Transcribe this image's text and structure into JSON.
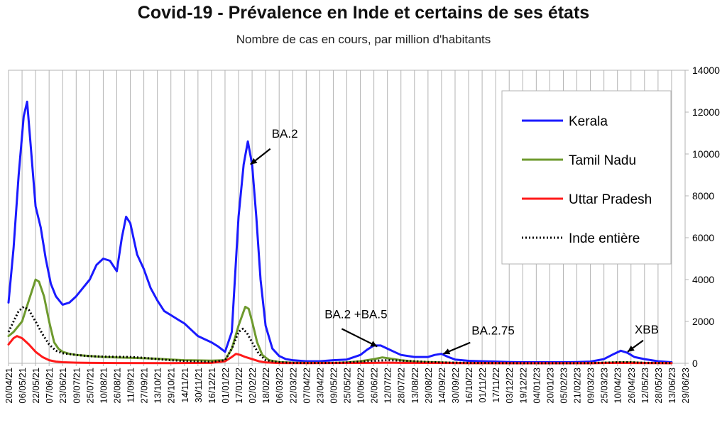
{
  "chart_data": {
    "type": "line",
    "title": "Covid-19 - Prévalence en Inde et certains de ses états",
    "subtitle": "Nombre de cas en cours, par million d'habitants",
    "xlabel": "",
    "ylabel": "",
    "ylim": [
      0,
      14000
    ],
    "yticks": [
      0,
      2000,
      4000,
      6000,
      8000,
      10000,
      12000,
      14000
    ],
    "y_axis_side": "right",
    "grid": "vertical",
    "legend_position": "top-right",
    "x_tick_labels": [
      "20/04/21",
      "06/05/21",
      "22/05/21",
      "07/06/21",
      "23/06/21",
      "09/07/21",
      "25/07/21",
      "10/08/21",
      "26/08/21",
      "11/09/21",
      "27/09/21",
      "13/10/21",
      "29/10/21",
      "14/11/21",
      "30/11/21",
      "16/12/21",
      "01/01/22",
      "17/01/22",
      "02/02/22",
      "18/02/22",
      "06/03/22",
      "22/03/22",
      "07/04/22",
      "23/04/22",
      "09/05/22",
      "25/05/22",
      "10/06/22",
      "26/06/22",
      "12/07/22",
      "28/07/22",
      "13/08/22",
      "29/08/22",
      "14/09/22",
      "30/09/22",
      "16/10/22",
      "01/11/22",
      "17/11/22",
      "03/12/22",
      "19/12/22",
      "04/01/23",
      "20/01/23",
      "05/02/23",
      "21/02/23",
      "09/03/23",
      "25/03/23",
      "10/04/23",
      "26/04/23",
      "12/05/23",
      "28/05/23",
      "13/06/23",
      "29/06/23"
    ],
    "series": [
      {
        "name": "Kerala",
        "color": "#1a1aff",
        "style": "solid",
        "points": [
          [
            "20/04/21",
            2900
          ],
          [
            "26/04/21",
            5500
          ],
          [
            "02/05/21",
            9000
          ],
          [
            "08/05/21",
            11800
          ],
          [
            "12/05/21",
            12500
          ],
          [
            "16/05/21",
            10500
          ],
          [
            "22/05/21",
            7500
          ],
          [
            "28/05/21",
            6500
          ],
          [
            "03/06/21",
            5000
          ],
          [
            "09/06/21",
            3800
          ],
          [
            "15/06/21",
            3200
          ],
          [
            "23/06/21",
            2800
          ],
          [
            "01/07/21",
            2900
          ],
          [
            "09/07/21",
            3200
          ],
          [
            "17/07/21",
            3600
          ],
          [
            "25/07/21",
            4000
          ],
          [
            "02/08/21",
            4700
          ],
          [
            "10/08/21",
            5000
          ],
          [
            "18/08/21",
            4900
          ],
          [
            "26/08/21",
            4400
          ],
          [
            "01/09/21",
            6000
          ],
          [
            "06/09/21",
            7000
          ],
          [
            "11/09/21",
            6700
          ],
          [
            "19/09/21",
            5200
          ],
          [
            "27/09/21",
            4500
          ],
          [
            "05/10/21",
            3600
          ],
          [
            "13/10/21",
            3000
          ],
          [
            "21/10/21",
            2500
          ],
          [
            "29/10/21",
            2300
          ],
          [
            "06/11/21",
            2100
          ],
          [
            "14/11/21",
            1900
          ],
          [
            "22/11/21",
            1600
          ],
          [
            "30/11/21",
            1300
          ],
          [
            "08/12/21",
            1150
          ],
          [
            "16/12/21",
            1000
          ],
          [
            "24/12/21",
            800
          ],
          [
            "01/01/22",
            550
          ],
          [
            "09/01/22",
            1500
          ],
          [
            "17/01/22",
            7000
          ],
          [
            "23/01/22",
            9500
          ],
          [
            "28/01/22",
            10600
          ],
          [
            "02/02/22",
            9500
          ],
          [
            "07/02/22",
            7000
          ],
          [
            "12/02/22",
            4000
          ],
          [
            "18/02/22",
            1800
          ],
          [
            "26/02/22",
            700
          ],
          [
            "06/03/22",
            350
          ],
          [
            "14/03/22",
            200
          ],
          [
            "22/03/22",
            150
          ],
          [
            "07/04/22",
            100
          ],
          [
            "23/04/22",
            100
          ],
          [
            "09/05/22",
            150
          ],
          [
            "25/05/22",
            180
          ],
          [
            "10/06/22",
            400
          ],
          [
            "18/06/22",
            650
          ],
          [
            "26/06/22",
            850
          ],
          [
            "04/07/22",
            850
          ],
          [
            "12/07/22",
            700
          ],
          [
            "20/07/22",
            550
          ],
          [
            "28/07/22",
            400
          ],
          [
            "13/08/22",
            300
          ],
          [
            "29/08/22",
            300
          ],
          [
            "06/09/22",
            400
          ],
          [
            "14/09/22",
            450
          ],
          [
            "22/09/22",
            300
          ],
          [
            "30/09/22",
            180
          ],
          [
            "16/10/22",
            120
          ],
          [
            "01/11/22",
            100
          ],
          [
            "17/11/22",
            80
          ],
          [
            "03/12/22",
            60
          ],
          [
            "19/12/22",
            50
          ],
          [
            "04/01/23",
            50
          ],
          [
            "20/01/23",
            50
          ],
          [
            "05/02/23",
            50
          ],
          [
            "21/02/23",
            60
          ],
          [
            "09/03/23",
            80
          ],
          [
            "25/03/23",
            200
          ],
          [
            "06/04/23",
            450
          ],
          [
            "14/04/23",
            600
          ],
          [
            "22/04/23",
            500
          ],
          [
            "30/04/23",
            300
          ],
          [
            "12/05/23",
            200
          ],
          [
            "28/05/23",
            100
          ],
          [
            "13/06/23",
            50
          ]
        ]
      },
      {
        "name": "Tamil Nadu",
        "color": "#6e9a2e",
        "style": "solid",
        "points": [
          [
            "20/04/21",
            1300
          ],
          [
            "26/04/21",
            1500
          ],
          [
            "06/05/21",
            2000
          ],
          [
            "14/05/21",
            3000
          ],
          [
            "22/05/21",
            4000
          ],
          [
            "26/05/21",
            3900
          ],
          [
            "01/06/21",
            3200
          ],
          [
            "07/06/21",
            2000
          ],
          [
            "13/06/21",
            1000
          ],
          [
            "18/06/21",
            700
          ],
          [
            "23/06/21",
            550
          ],
          [
            "01/07/21",
            450
          ],
          [
            "09/07/21",
            400
          ],
          [
            "25/07/21",
            350
          ],
          [
            "10/08/21",
            300
          ],
          [
            "26/08/21",
            280
          ],
          [
            "11/09/21",
            260
          ],
          [
            "27/09/21",
            240
          ],
          [
            "13/10/21",
            220
          ],
          [
            "29/10/21",
            180
          ],
          [
            "14/11/21",
            150
          ],
          [
            "30/11/21",
            140
          ],
          [
            "16/12/21",
            130
          ],
          [
            "01/01/22",
            150
          ],
          [
            "09/01/22",
            700
          ],
          [
            "17/01/22",
            1800
          ],
          [
            "25/01/22",
            2700
          ],
          [
            "29/01/22",
            2600
          ],
          [
            "02/02/22",
            2000
          ],
          [
            "08/02/22",
            1000
          ],
          [
            "14/02/22",
            400
          ],
          [
            "22/02/22",
            150
          ],
          [
            "06/03/22",
            60
          ],
          [
            "22/03/22",
            30
          ],
          [
            "07/04/22",
            20
          ],
          [
            "09/05/22",
            20
          ],
          [
            "25/05/22",
            40
          ],
          [
            "10/06/22",
            100
          ],
          [
            "26/06/22",
            200
          ],
          [
            "06/07/22",
            280
          ],
          [
            "20/07/22",
            200
          ],
          [
            "28/07/22",
            150
          ],
          [
            "13/08/22",
            80
          ],
          [
            "29/08/22",
            60
          ],
          [
            "14/09/22",
            40
          ],
          [
            "30/09/22",
            20
          ],
          [
            "16/10/22",
            10
          ],
          [
            "19/12/22",
            5
          ],
          [
            "04/01/23",
            5
          ],
          [
            "09/03/23",
            10
          ],
          [
            "10/04/23",
            40
          ],
          [
            "26/04/23",
            40
          ],
          [
            "12/05/23",
            20
          ],
          [
            "13/06/23",
            10
          ]
        ]
      },
      {
        "name": "Uttar Pradesh",
        "color": "#ff1a1a",
        "style": "solid",
        "points": [
          [
            "20/04/21",
            900
          ],
          [
            "26/04/21",
            1200
          ],
          [
            "30/04/21",
            1300
          ],
          [
            "06/05/21",
            1200
          ],
          [
            "14/05/21",
            900
          ],
          [
            "22/05/21",
            550
          ],
          [
            "30/05/21",
            300
          ],
          [
            "07/06/21",
            150
          ],
          [
            "15/06/21",
            80
          ],
          [
            "23/06/21",
            50
          ],
          [
            "09/07/21",
            30
          ],
          [
            "25/07/21",
            20
          ],
          [
            "26/08/21",
            15
          ],
          [
            "29/10/21",
            10
          ],
          [
            "16/12/21",
            20
          ],
          [
            "01/01/22",
            100
          ],
          [
            "09/01/22",
            300
          ],
          [
            "14/01/22",
            450
          ],
          [
            "19/01/22",
            400
          ],
          [
            "25/01/22",
            300
          ],
          [
            "02/02/22",
            200
          ],
          [
            "10/02/22",
            100
          ],
          [
            "18/02/22",
            40
          ],
          [
            "06/03/22",
            15
          ],
          [
            "07/04/22",
            10
          ],
          [
            "26/06/22",
            20
          ],
          [
            "12/07/22",
            30
          ],
          [
            "28/07/22",
            20
          ],
          [
            "30/09/22",
            10
          ],
          [
            "19/12/22",
            5
          ],
          [
            "09/03/23",
            5
          ],
          [
            "10/04/23",
            20
          ],
          [
            "26/04/23",
            15
          ],
          [
            "13/06/23",
            5
          ]
        ]
      },
      {
        "name": "Inde entière",
        "color": "#000000",
        "style": "dotted",
        "points": [
          [
            "20/04/21",
            1500
          ],
          [
            "26/04/21",
            2000
          ],
          [
            "02/05/21",
            2500
          ],
          [
            "08/05/21",
            2700
          ],
          [
            "14/05/21",
            2550
          ],
          [
            "22/05/21",
            2000
          ],
          [
            "30/05/21",
            1400
          ],
          [
            "07/06/21",
            900
          ],
          [
            "15/06/21",
            600
          ],
          [
            "23/06/21",
            480
          ],
          [
            "09/07/21",
            400
          ],
          [
            "25/07/21",
            340
          ],
          [
            "10/08/21",
            320
          ],
          [
            "26/08/21",
            310
          ],
          [
            "11/09/21",
            300
          ],
          [
            "27/09/21",
            260
          ],
          [
            "13/10/21",
            200
          ],
          [
            "29/10/21",
            150
          ],
          [
            "14/11/21",
            110
          ],
          [
            "30/11/21",
            90
          ],
          [
            "16/12/21",
            70
          ],
          [
            "01/01/22",
            150
          ],
          [
            "09/01/22",
            700
          ],
          [
            "17/01/22",
            1500
          ],
          [
            "22/01/22",
            1650
          ],
          [
            "27/01/22",
            1450
          ],
          [
            "02/02/22",
            1000
          ],
          [
            "10/02/22",
            450
          ],
          [
            "18/02/22",
            150
          ],
          [
            "06/03/22",
            50
          ],
          [
            "22/03/22",
            25
          ],
          [
            "07/04/22",
            15
          ],
          [
            "09/05/22",
            20
          ],
          [
            "25/05/22",
            40
          ],
          [
            "10/06/22",
            80
          ],
          [
            "26/06/22",
            120
          ],
          [
            "12/07/22",
            150
          ],
          [
            "28/07/22",
            130
          ],
          [
            "13/08/22",
            100
          ],
          [
            "29/08/22",
            60
          ],
          [
            "14/09/22",
            40
          ],
          [
            "30/09/22",
            30
          ],
          [
            "16/10/22",
            20
          ],
          [
            "19/12/22",
            5
          ],
          [
            "05/02/23",
            5
          ],
          [
            "09/03/23",
            10
          ],
          [
            "10/04/23",
            50
          ],
          [
            "26/04/23",
            50
          ],
          [
            "12/05/23",
            25
          ],
          [
            "13/06/23",
            10
          ]
        ]
      }
    ],
    "annotations": [
      {
        "text": "BA.2",
        "arrow_tip": [
          "31/01/22",
          9500
        ]
      },
      {
        "text": "BA.2 +BA.5",
        "arrow_tip": [
          "30/06/22",
          800
        ]
      },
      {
        "text": "BA.2.75",
        "arrow_tip": [
          "16/09/22",
          450
        ]
      },
      {
        "text": "XBB",
        "arrow_tip": [
          "22/04/23",
          550
        ]
      }
    ]
  }
}
